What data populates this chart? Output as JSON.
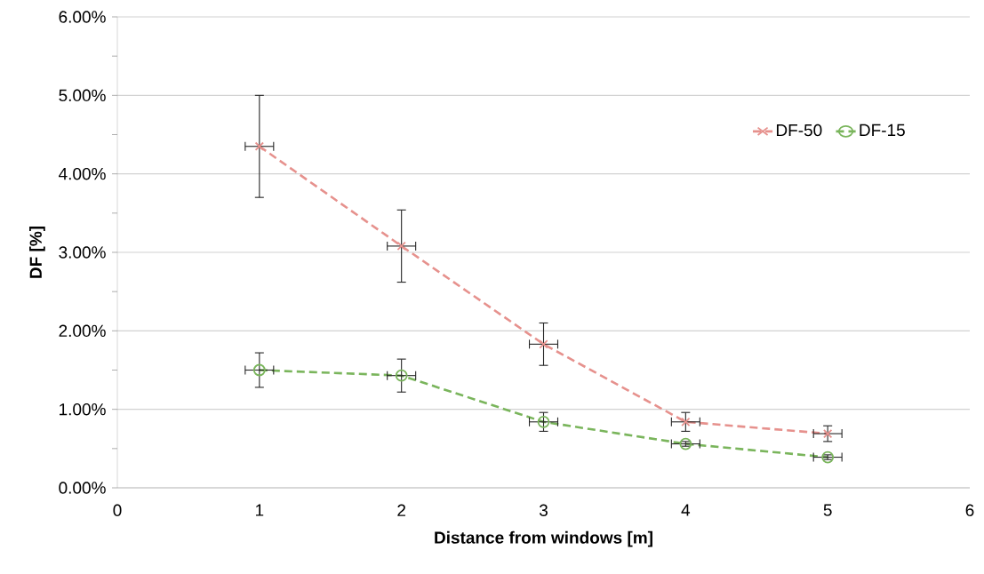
{
  "chart_data": {
    "type": "line",
    "xlabel": "Distance from windows [m]",
    "ylabel": "DF [%]",
    "xlim": [
      0,
      6
    ],
    "xticks": [
      0,
      1,
      2,
      3,
      4,
      5,
      6
    ],
    "ylim": [
      0,
      6
    ],
    "yticks": [
      {
        "value": 0,
        "label": "0.00%"
      },
      {
        "value": 1,
        "label": "1.00%"
      },
      {
        "value": 2,
        "label": "2.00%"
      },
      {
        "value": 3,
        "label": "3.00%"
      },
      {
        "value": 4,
        "label": "4.00%"
      },
      {
        "value": 5,
        "label": "5.00%"
      },
      {
        "value": 6,
        "label": "6.00%"
      }
    ],
    "grid": "y",
    "legend": "top right",
    "line_style": "dashed",
    "series": [
      {
        "name": "DF-50",
        "color": "#e6918d",
        "marker": "cross",
        "x": [
          1,
          2,
          3,
          4,
          5
        ],
        "values": [
          4.35,
          3.08,
          1.83,
          0.84,
          0.69
        ],
        "errors": [
          0.65,
          0.46,
          0.27,
          0.12,
          0.1
        ],
        "xerrors": [
          0.1,
          0.1,
          0.1,
          0.1,
          0.1
        ]
      },
      {
        "name": "DF-15",
        "color": "#7ab55c",
        "marker": "circle",
        "x": [
          1,
          2,
          3,
          4,
          5
        ],
        "values": [
          1.5,
          1.43,
          0.84,
          0.56,
          0.39
        ],
        "errors": [
          0.22,
          0.21,
          0.12,
          0.03,
          0.03
        ],
        "xerrors": [
          0.1,
          0.1,
          0.1,
          0.1,
          0.1
        ]
      }
    ]
  }
}
